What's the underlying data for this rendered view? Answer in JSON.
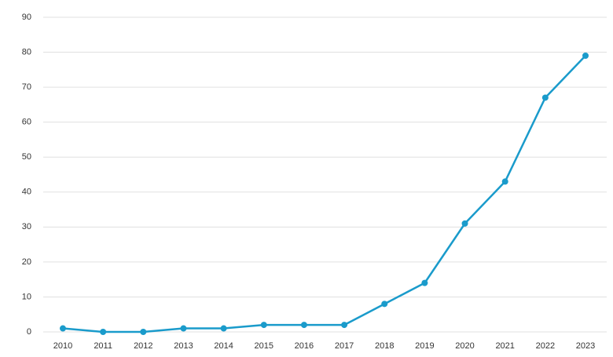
{
  "chart_data": {
    "type": "line",
    "categories": [
      "2010",
      "2011",
      "2012",
      "2013",
      "2014",
      "2015",
      "2016",
      "2017",
      "2018",
      "2019",
      "2020",
      "2021",
      "2022",
      "2023"
    ],
    "series": [
      {
        "color": "#1a9bcb",
        "values": [
          1,
          0,
          0,
          1,
          1,
          2,
          2,
          2,
          8,
          14,
          31,
          43,
          67,
          79
        ]
      }
    ],
    "ylim": [
      0,
      90
    ],
    "yticks": [
      0,
      10,
      20,
      30,
      40,
      50,
      60,
      70,
      80,
      90
    ],
    "grid": true
  }
}
